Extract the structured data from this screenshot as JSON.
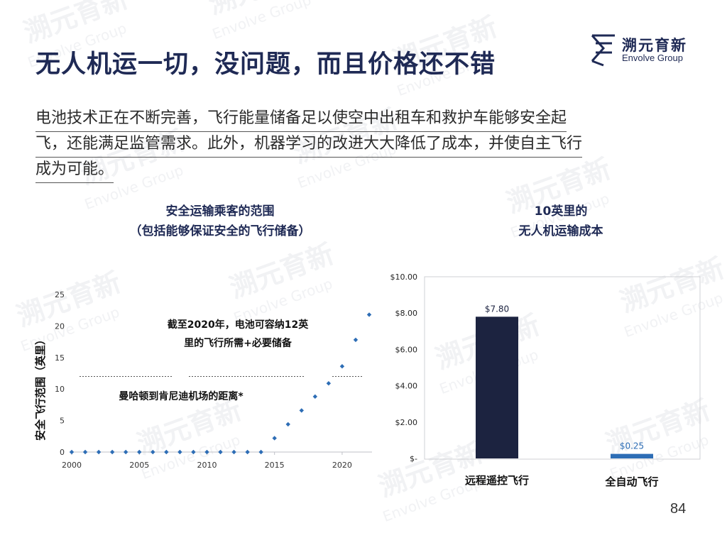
{
  "slide": {
    "title": "无人机运一切，没问题，而且价格还不错",
    "intro_lines": [
      "电池技术正在不断完善，飞行能量储备足以使空中出租车和救护车能够安全起",
      "飞，还能满足监管需求。此外，机器学习的改进大大降低了成本，并使自主飞行",
      "成为可能。"
    ],
    "page_number": "84"
  },
  "logo": {
    "name_cn": "溯元育新",
    "name_en": "Envolve Group"
  },
  "watermark": {
    "text_cn": "溯元育新",
    "text_en": "Envolve Group"
  },
  "colors": {
    "navy": "#1c2340",
    "accent": "#2d6db5",
    "text": "#2a2a2a"
  },
  "chart_data": [
    {
      "type": "scatter",
      "title_lines": [
        "安全运输乘客的范围",
        "（包括能够保证安全的飞行储备）"
      ],
      "ylabel": "安全飞行范围（英里）",
      "xlabel": "",
      "xlim": [
        2000,
        2022
      ],
      "ylim": [
        0,
        25
      ],
      "x_ticks": [
        2000,
        2005,
        2010,
        2015,
        2020
      ],
      "y_ticks": [
        0,
        5,
        10,
        15,
        20,
        25
      ],
      "x": [
        2000,
        2001,
        2002,
        2003,
        2004,
        2005,
        2006,
        2007,
        2008,
        2009,
        2010,
        2011,
        2012,
        2013,
        2014,
        2015,
        2016,
        2017,
        2018,
        2019,
        2020,
        2021,
        2022
      ],
      "y": [
        0,
        0,
        0,
        0,
        0,
        0,
        0,
        0,
        0,
        0,
        0,
        0,
        0,
        0,
        0,
        2.2,
        4.4,
        6.6,
        8.8,
        10.9,
        13.6,
        17.8,
        21.8
      ],
      "reference_line": {
        "y": 12,
        "label": "曼哈顿到肯尼迪机场的距离*"
      },
      "annotation": [
        "截至2020年，电池可容纳12英",
        "里的飞行所需+必要储备"
      ],
      "grid": false,
      "marker_color": "#2d6db5"
    },
    {
      "type": "bar",
      "title_lines": [
        "10英里的",
        "无人机运输成本"
      ],
      "categories": [
        "远程遥控飞行",
        "全自动飞行"
      ],
      "values": [
        7.8,
        0.25
      ],
      "value_labels": [
        "$7.80",
        "$0.25"
      ],
      "ylim": [
        0,
        10
      ],
      "y_ticks": [
        0,
        2,
        4,
        6,
        8,
        10
      ],
      "y_tick_labels": [
        "$-",
        "$2.00",
        "$4.00",
        "$6.00",
        "$8.00",
        "$10.00"
      ],
      "bar_colors": [
        "#1c2340",
        "#2d6db5"
      ],
      "grid": false
    }
  ]
}
